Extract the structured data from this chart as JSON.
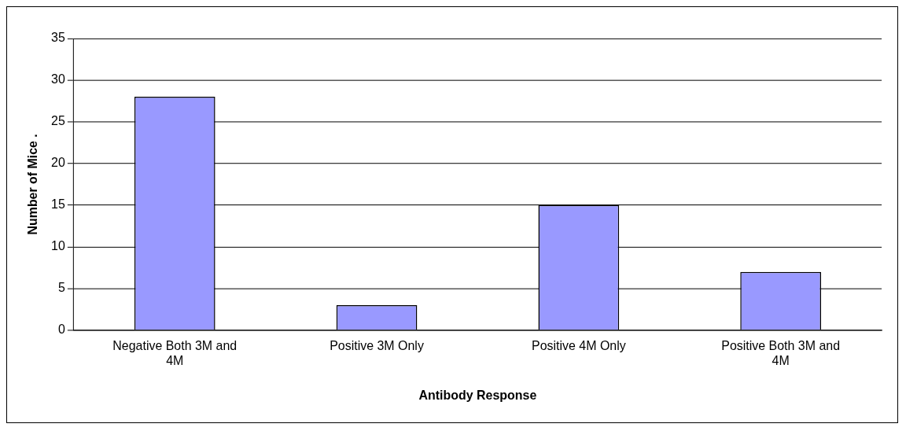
{
  "chart_data": {
    "type": "bar",
    "xlabel": "Antibody Response",
    "ylabel": "Number of Mice .",
    "categories": [
      "Negative Both 3M and 4M",
      "Positive 3M Only",
      "Positive 4M Only",
      "Positive Both 3M and 4M"
    ],
    "values": [
      28,
      3,
      15,
      7
    ],
    "color": "#9999ff",
    "ylim": [
      0,
      35
    ],
    "yticks": [
      0,
      5,
      10,
      15,
      20,
      25,
      30,
      35
    ],
    "grid": "y",
    "legend": false
  }
}
